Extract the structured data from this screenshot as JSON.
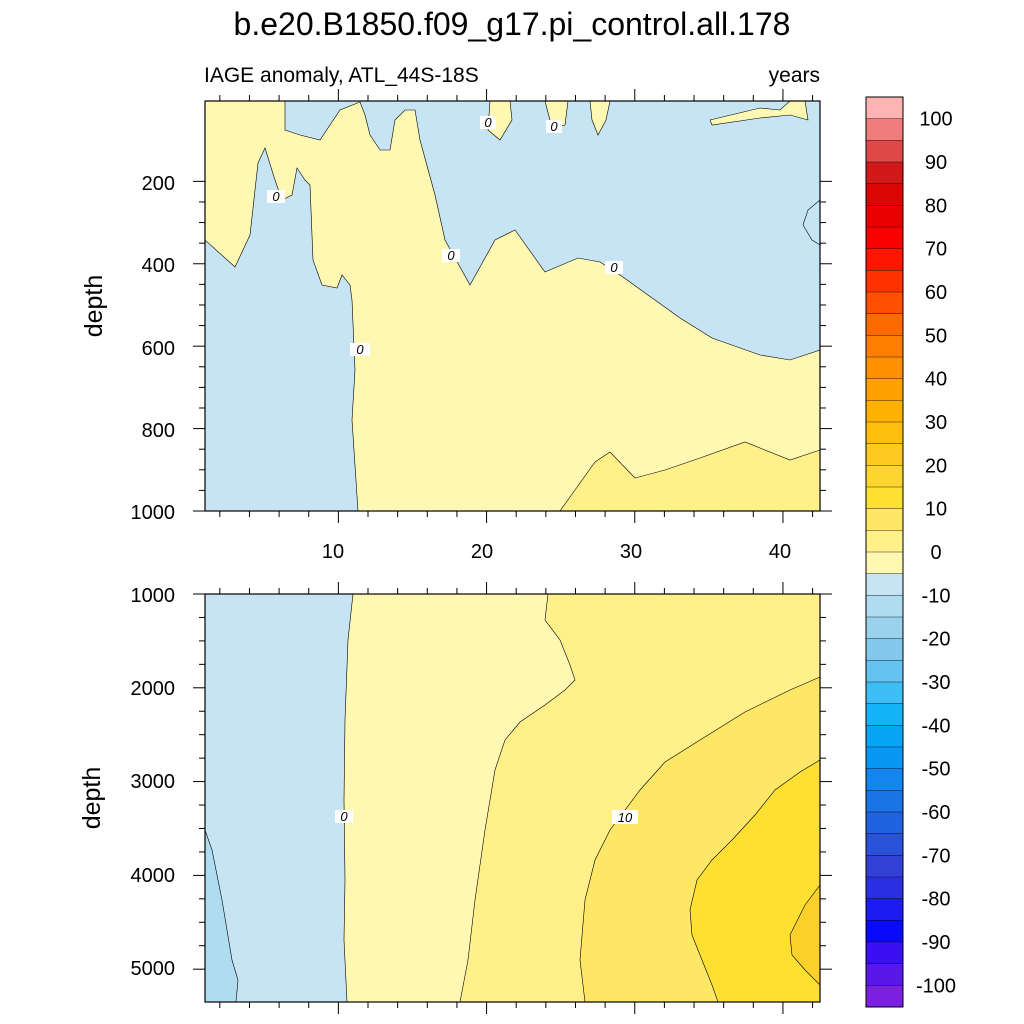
{
  "chart_data": [
    {
      "type": "heatmap",
      "panel": "upper",
      "title": "b.e20.B1850.f09_g17.pi_control.all.178",
      "subtitle_left": "IAGE anomaly, ATL_44S-18S",
      "subtitle_right": "years",
      "ylabel": "depth",
      "xlabel": "",
      "xlim": [
        1,
        42.5
      ],
      "ylim": [
        1000,
        5
      ],
      "y_reversed": true,
      "x_ticks": [
        10,
        20,
        30,
        40
      ],
      "y_ticks": [
        200,
        400,
        600,
        800,
        1000
      ],
      "contour_interval": 5,
      "contour_line_labels": [
        "0",
        "0",
        "0",
        "0",
        "0",
        "0",
        "0"
      ],
      "regions": [
        {
          "range": "-5 to 0",
          "color": "#c6e4f4",
          "location": "x < 11.5 at depth; upper layer above ~400 m east of x=20"
        },
        {
          "range": "0 to 5",
          "color": "#fff8b3",
          "location": "main body x > 11.5 below surface layer"
        },
        {
          "range": "5 to 10",
          "color": "#fff08a",
          "location": "bottom right, depth > 850 m, x > 25"
        }
      ],
      "zero_contour": {
        "x": [
          11.5,
          12,
          11.5,
          11.2,
          10.5,
          10,
          9.5,
          8.5,
          7,
          5,
          3.5,
          2,
          1
        ],
        "y": [
          1000,
          800,
          600,
          420,
          420,
          380,
          300,
          230,
          200,
          230,
          400,
          350,
          330
        ]
      }
    },
    {
      "type": "heatmap",
      "panel": "lower",
      "ylabel": "depth",
      "xlabel": "",
      "xlim": [
        1,
        42.5
      ],
      "ylim": [
        5350,
        1000
      ],
      "y_reversed": true,
      "y_ticks": [
        1000,
        2000,
        3000,
        4000,
        5000
      ],
      "contour_interval": 5,
      "contour_line_labels": [
        "0",
        "10"
      ],
      "regions": [
        {
          "range": "-10 to -5",
          "color": "#b0dcf0",
          "location": "far left bottom, x < 3"
        },
        {
          "range": "-5 to 0",
          "color": "#c6e4f4",
          "location": "x < 10.8"
        },
        {
          "range": "0 to 5",
          "color": "#fff8b3",
          "location": "10.8 < x < ~20 to 25"
        },
        {
          "range": "5 to 10",
          "color": "#fff08a",
          "location": "middle band"
        },
        {
          "range": "10 to 15",
          "color": "#fee766",
          "location": "right side, x > ~26"
        },
        {
          "range": "15 to 20",
          "color": "#fde032",
          "location": "bottom right, x > 33"
        },
        {
          "range": "20 to 25",
          "color": "#fcd02a",
          "location": "x > 40, depth 4200-5000"
        }
      ]
    }
  ],
  "colorbar": {
    "labels": [
      "100",
      "90",
      "80",
      "70",
      "60",
      "50",
      "40",
      "30",
      "20",
      "10",
      "0",
      "-10",
      "-20",
      "-30",
      "-40",
      "-50",
      "-60",
      "-70",
      "-80",
      "-90",
      "-100"
    ],
    "colors_top_to_bottom": [
      "#feb4b4",
      "#f07d7d",
      "#e04848",
      "#d11919",
      "#dc0505",
      "#eb0000",
      "#fa0000",
      "#ff1500",
      "#ff3300",
      "#ff5000",
      "#ff6a00",
      "#ff7e00",
      "#ff9000",
      "#ffa100",
      "#ffb100",
      "#ffbe0d",
      "#fec920",
      "#fdd52e",
      "#fde032",
      "#fee766",
      "#fff08a",
      "#fff8b3",
      "#c6e4f4",
      "#b0dcf0",
      "#9ad2ec",
      "#84c8eb",
      "#66c2f0",
      "#3fbdf5",
      "#14b4f8",
      "#07a6f5",
      "#0a97f3",
      "#1285ee",
      "#1a74e6",
      "#2163df",
      "#2a52d8",
      "#3340d6",
      "#2b2fe4",
      "#1c1cf2",
      "#0a0afa",
      "#3a10f2",
      "#5a18e8",
      "#7b20e2"
    ]
  }
}
